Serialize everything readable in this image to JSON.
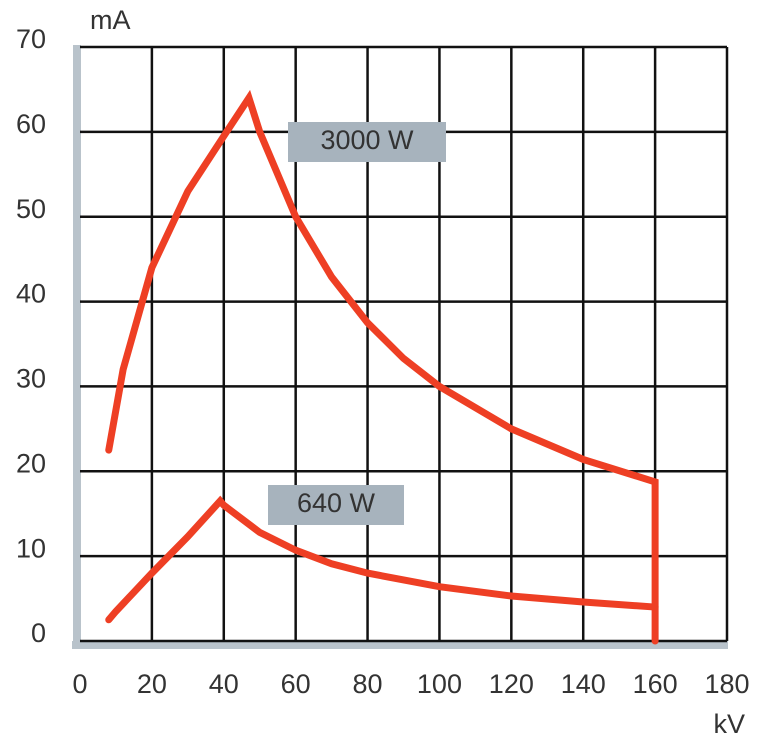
{
  "chart_data": {
    "type": "line",
    "y_label": "mA",
    "x_label": "kV",
    "xlim": [
      0,
      180
    ],
    "xticks": [
      0,
      20,
      40,
      60,
      80,
      100,
      120,
      140,
      160,
      180
    ],
    "ylim": [
      0,
      70
    ],
    "yticks": [
      0,
      10,
      20,
      30,
      40,
      50,
      60,
      70
    ],
    "grid": true,
    "series": [
      {
        "name": "3000 W",
        "color": "#ee3f24",
        "x": [
          8,
          12,
          20,
          30,
          40,
          47,
          50,
          60,
          70,
          80,
          90,
          100,
          120,
          140,
          160,
          160
        ],
        "values": [
          22.5,
          32,
          44,
          53,
          59.5,
          64,
          60,
          50,
          42.9,
          37.5,
          33.3,
          30,
          25,
          21.4,
          18.75,
          0
        ]
      },
      {
        "name": "640 W",
        "color": "#ee3f24",
        "x": [
          8,
          10,
          20,
          30,
          39,
          40,
          50,
          60,
          70,
          80,
          100,
          120,
          140,
          160
        ],
        "values": [
          2.5,
          3.5,
          8,
          12.3,
          16.5,
          16,
          12.8,
          10.7,
          9.1,
          8,
          6.4,
          5.3,
          4.6,
          4
        ]
      }
    ]
  }
}
